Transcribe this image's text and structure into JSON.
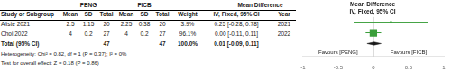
{
  "chart_data": {
    "type": "forest",
    "title": "Mean Difference",
    "subtitle": "IV, Fixed, 95% CI",
    "categories": [
      "Aliste 2021",
      "Choi 2022",
      "Total (95% CI)"
    ],
    "series": [
      {
        "marker": "square",
        "color": "#3a9e3a",
        "values": [
          0.25,
          0.0,
          null
        ],
        "ci_low": [
          -0.28,
          -0.11,
          null
        ],
        "ci_high": [
          0.78,
          0.11,
          null
        ],
        "weights": [
          3.9,
          96.1,
          null
        ]
      },
      {
        "marker": "diamond",
        "color": "#1a1a1a",
        "values": [
          null,
          null,
          0.01
        ],
        "ci_low": [
          null,
          null,
          -0.09
        ],
        "ci_high": [
          null,
          null,
          0.11
        ]
      }
    ],
    "xlim": [
      -1,
      1
    ],
    "xticks": [
      -1,
      -0.5,
      0,
      0.5,
      1
    ],
    "reference_line": 0,
    "grid": false,
    "tick_labels": "x",
    "annotations": [
      {
        "text": "Favours [PENG]",
        "x": -0.5
      },
      {
        "text": "Favours [FICB]",
        "x": 0.5
      }
    ],
    "table": {
      "group_headers": [
        "PENG",
        "FICB",
        "Mean Difference"
      ],
      "columns": [
        "Study or Subgroup",
        "Mean",
        "SD",
        "Total",
        "Mean",
        "SD",
        "Total",
        "Weight",
        "IV, Fixed, 95% CI",
        "Year"
      ],
      "rows": [
        [
          "2.5",
          "1.15",
          "20",
          "2.25",
          "0.38",
          "20",
          "3.9%",
          "0.25 [-0.28, 0.78]",
          "2021"
        ],
        [
          "4",
          "0.2",
          "27",
          "4",
          "0.2",
          "27",
          "96.1%",
          "0.00 [-0.11, 0.11]",
          "2022"
        ],
        [
          null,
          null,
          "47",
          null,
          null,
          "47",
          "100.0%",
          "0.01 [-0.09, 0.11]",
          null
        ]
      ],
      "footer": [
        "Heterogeneity: Chi² = 0.82, df = 1 (P = 0.37); I² = 0%",
        "Test for overall effect: Z = 0.18 (P = 0.86)"
      ]
    }
  }
}
